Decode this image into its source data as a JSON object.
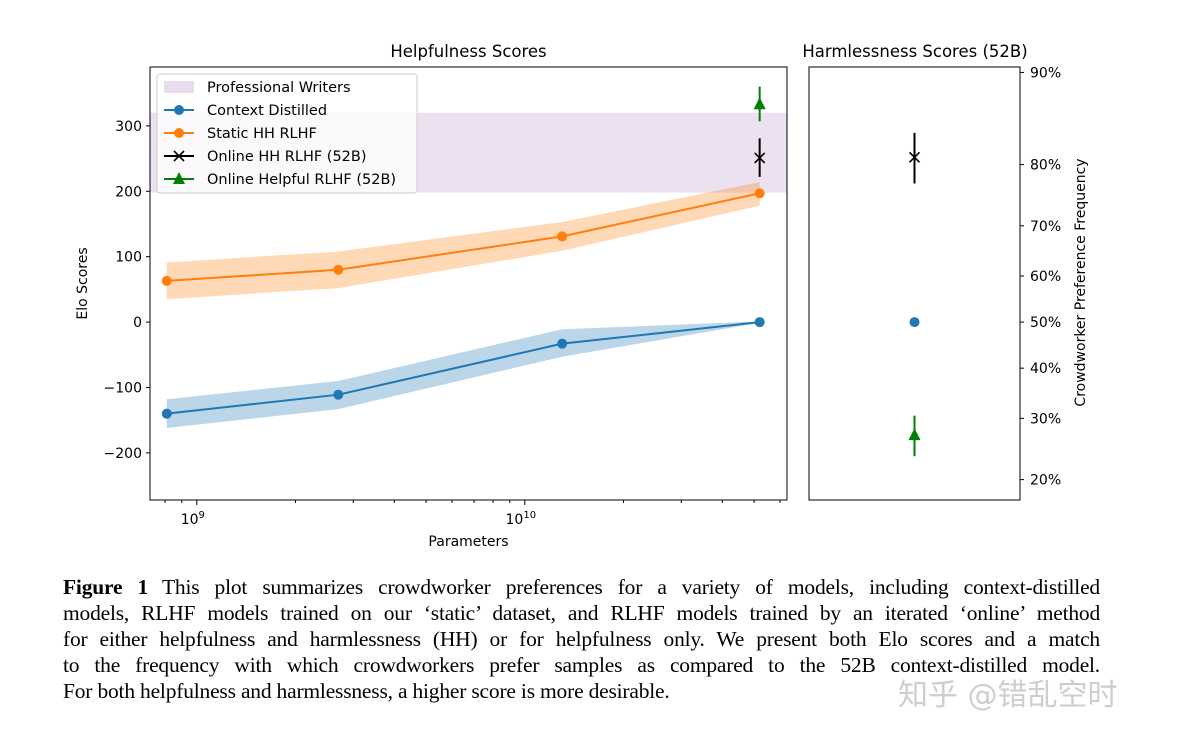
{
  "chart_data": [
    {
      "type": "line",
      "title": "Helpfulness Scores",
      "xlabel": "Parameters",
      "ylabel": "Elo Scores",
      "xscale": "log",
      "xlim": [
        720000000.0,
        63000000000.0
      ],
      "ylim": [
        -272,
        390
      ],
      "xticks": [
        {
          "value": 1000000000.0,
          "base": "10",
          "exp": "9"
        },
        {
          "value": 10000000000.0,
          "base": "10",
          "exp": "10"
        }
      ],
      "yticks": [
        300,
        200,
        100,
        0,
        -100,
        -200
      ],
      "yticklabels": [
        "300",
        "200",
        "100",
        "0",
        "−100",
        "−200"
      ],
      "grid": false,
      "legend_position": "top-left",
      "band": {
        "name": "Professional Writers",
        "ymin": 198,
        "ymax": 320,
        "color": "#e9dcee"
      },
      "series": [
        {
          "name": "Context Distilled",
          "color": "#1f77b4",
          "marker": "circle",
          "x": [
            810000000.0,
            2700000000.0,
            13000000000.0,
            52000000000.0
          ],
          "y": [
            -140,
            -111,
            -33,
            0
          ],
          "lower": [
            -162,
            -133,
            -53,
            -1
          ],
          "upper": [
            -118,
            -90,
            -11,
            1
          ]
        },
        {
          "name": "Static HH RLHF",
          "color": "#ff7f0e",
          "marker": "circle",
          "x": [
            810000000.0,
            2700000000.0,
            13000000000.0,
            52000000000.0
          ],
          "y": [
            63,
            80,
            131,
            197
          ],
          "lower": [
            35,
            52,
            109,
            178
          ],
          "upper": [
            91,
            108,
            153,
            214
          ]
        },
        {
          "name": "Online HH RLHF (52B)",
          "color": "#000000",
          "marker": "x",
          "x": [
            52000000000.0
          ],
          "y": [
            251
          ],
          "err_low": [
            222
          ],
          "err_high": [
            281
          ]
        },
        {
          "name": "Online Helpful RLHF (52B)",
          "color": "#008000",
          "marker": "triangle",
          "x": [
            52000000000.0
          ],
          "y": [
            333
          ],
          "err_low": [
            307
          ],
          "err_high": [
            360
          ]
        }
      ]
    },
    {
      "type": "scatter",
      "title": "Harmlessness Scores (52B)",
      "ylabel": "Crowdworker Preference Frequency",
      "yticks_percent": [
        90,
        80,
        70,
        60,
        50,
        40,
        30,
        20
      ],
      "yticklabels": [
        "90%",
        "80%",
        "70%",
        "60%",
        "50%",
        "40%",
        "30%",
        "20%"
      ],
      "grid": false,
      "series": [
        {
          "name": "Online HH RLHF (52B)",
          "color": "#000000",
          "marker": "x",
          "y_percent": 81,
          "err_low_percent": 77.2,
          "err_high_percent": 84.1
        },
        {
          "name": "Context Distilled",
          "color": "#1f77b4",
          "marker": "circle",
          "y_percent": 50
        },
        {
          "name": "Online Helpful RLHF (52B)",
          "color": "#008000",
          "marker": "triangle",
          "y_percent": 27,
          "err_low_percent": 23.5,
          "err_high_percent": 30.5
        }
      ]
    }
  ],
  "caption": {
    "label": "Figure 1",
    "lines": [
      "This plot summarizes crowdworker preferences for a variety of models, including context-distilled",
      "models, RLHF models trained on our ‘static’ dataset, and RLHF models trained by an iterated ‘online’ method",
      "for either helpfulness and harmlessness (HH) or for helpfulness only. We present both Elo scores and a match",
      "to the frequency with which crowdworkers prefer samples as compared to the 52B context-distilled model.",
      "For both helpfulness and harmlessness, a higher score is more desirable."
    ]
  },
  "watermark": "知乎 @错乱空时"
}
